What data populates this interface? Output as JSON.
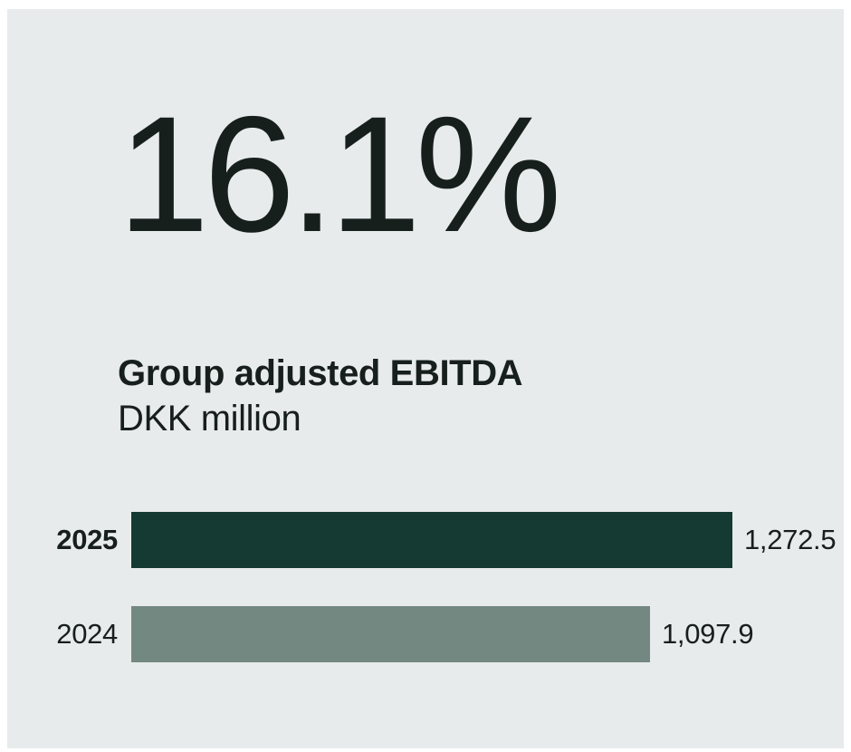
{
  "page": {
    "background": "#ffffff",
    "card_background": "#e8ebeb",
    "text_color": "#171f1d"
  },
  "headline": {
    "value": "16.1%"
  },
  "chart": {
    "title": "Group adjusted EBITDA",
    "subtitle": "DKK million",
    "rows": [
      {
        "year": "2025",
        "display_value": "1,272.5"
      },
      {
        "year": "2024",
        "display_value": "1,097.9"
      }
    ]
  },
  "chart_data": {
    "type": "bar",
    "orientation": "horizontal",
    "title": "Group adjusted EBITDA",
    "unit": "DKK million",
    "headline": "16.1%",
    "categories": [
      "2025",
      "2024"
    ],
    "values": [
      1272.5,
      1097.9
    ],
    "value_labels": [
      "1,272.5",
      "1,097.9"
    ],
    "xlim": [
      0,
      1272.5
    ],
    "grid": false,
    "legend": false,
    "bar_colors": [
      "#153a33",
      "#748882"
    ],
    "emphasized_category": "2025"
  }
}
